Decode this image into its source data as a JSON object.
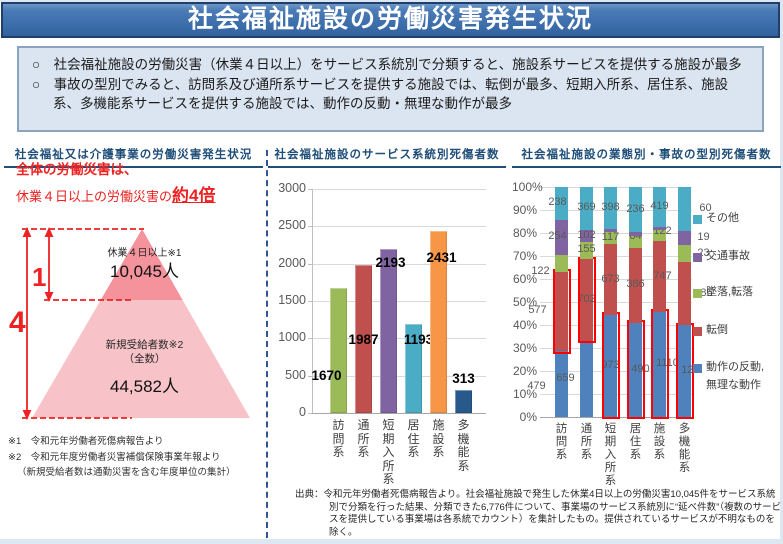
{
  "title": "社会福祉施設の労働災害発生状況",
  "intro": {
    "bullets": [
      {
        "marker": "○",
        "text": "社会福祉施設の労働災害（休業４日以上）をサービス系統別で分類すると、施設系サービスを提供する施設が最多"
      },
      {
        "marker": "○",
        "text": "事故の型別でみると、訪問系及び通所系サービスを提供する施設では、転倒が最多、短期入所系、居住系、施設系、多機能系サービスを提供する施設では、動作の反動・無理な動作が最多"
      }
    ]
  },
  "left_panel": {
    "header": "社会福祉又は介護事業の労働災害発生状況",
    "highlight_line1": "全体の労働災害は、",
    "highlight_line2_prefix": "休業４日以上の労働災害の",
    "highlight_line2_emphasis": "約4倍",
    "ratio_small": "1",
    "ratio_large": "4",
    "pyramid_top_label": "休業４日以上※1",
    "pyramid_top_value": "10,045人",
    "pyramid_bottom_label": "新規受給者数※2",
    "pyramid_bottom_sublabel": "（全数）",
    "pyramid_bottom_value": "44,582人",
    "footnotes": [
      "※1　令和元年労働者死傷病報告より",
      "※2　令和元年度労働者災害補償保険事業年報より",
      "（新規受給者数は通勤災害を含む年度単位の集計）"
    ]
  },
  "middle_panel": {
    "header": "社会福祉施設のサービス系統別死傷者数"
  },
  "right_panel": {
    "header": "社会福祉施設の業態別・事故の型別死傷者数"
  },
  "chart_data": [
    {
      "type": "bar",
      "title": "社会福祉施設のサービス系統別死傷者数",
      "categories": [
        "訪問系",
        "通所系",
        "短期入所系",
        "居住系",
        "施設系",
        "多機能系"
      ],
      "values": [
        1670,
        1987,
        2193,
        1193,
        2431,
        313
      ],
      "bar_colors": [
        "#9BBB59",
        "#C0504D",
        "#8064A2",
        "#4BACC6",
        "#F79646",
        "#27598C"
      ],
      "ylim": [
        0,
        3000
      ],
      "yticks": [
        0,
        500,
        1000,
        1500,
        2000,
        2500,
        3000
      ],
      "grid": true,
      "xlabel": "",
      "ylabel": ""
    },
    {
      "type": "bar",
      "stacked_percent": true,
      "title": "社会福祉施設の業態別・事故の型別死傷者数",
      "categories": [
        "訪問系",
        "通所系",
        "短期入所系",
        "居住系",
        "施設系",
        "多機能系"
      ],
      "series": [
        {
          "name": "動作の反動,無理な動作",
          "legend_lines": [
            "動作の反動,",
            "無理な動作"
          ],
          "color": "#4F81BD",
          "values": [
            479,
            659,
            973,
            490,
            1110,
            125
          ]
        },
        {
          "name": "転倒",
          "legend_lines": [
            "転倒"
          ],
          "color": "#C0504D",
          "values": [
            577,
            702,
            673,
            386,
            747,
            86
          ]
        },
        {
          "name": "墜落,転落",
          "legend_lines": [
            "墜落,転落"
          ],
          "color": "#9BBB59",
          "values": [
            122,
            155,
            117,
            64,
            122,
            23
          ]
        },
        {
          "name": "交通事故",
          "legend_lines": [
            "交通事故"
          ],
          "color": "#8064A2",
          "values": [
            254,
            102,
            32,
            17,
            33,
            19
          ]
        },
        {
          "name": "その他",
          "legend_lines": [
            "その他"
          ],
          "color": "#4BACC6",
          "values": [
            238,
            369,
            398,
            236,
            419,
            60
          ]
        }
      ],
      "highlighted_segment": [
        "転倒",
        "転倒",
        "動作の反動,無理な動作",
        "動作の反動,無理な動作",
        "動作の反動,無理な動作",
        "動作の反動,無理な動作"
      ],
      "ylim": [
        0,
        100
      ],
      "yticks": [
        0,
        10,
        20,
        30,
        40,
        50,
        60,
        70,
        80,
        90,
        100
      ],
      "ytick_suffix": "%",
      "grid": true,
      "legend_position": "right"
    }
  ],
  "source_note": "出典：令和元年労働者死傷病報告より。社会福祉施設で発生した休業4日以上の労働災害10,045件をサービス系統別で分類を行った結果、分類できた6,776件について、事業場のサービス系統別に“延べ件数”（複数のサービスを提供している事業場は各系統でカウント）を集計したもの。提供されているサービスが不明なものを除く。",
  "colors": {
    "accent_red": "#EE2222",
    "highlight_red": "#FF0000",
    "header_blue": "#1F4E79",
    "divider_blue": "#2F5597",
    "title_border": "#203E6B",
    "intro_bg": "#DBE5F1",
    "intro_border": "#8CA3BE",
    "pyramid_top_fill": "#F4939C",
    "pyramid_bottom_fill": "#F8C3C8"
  }
}
